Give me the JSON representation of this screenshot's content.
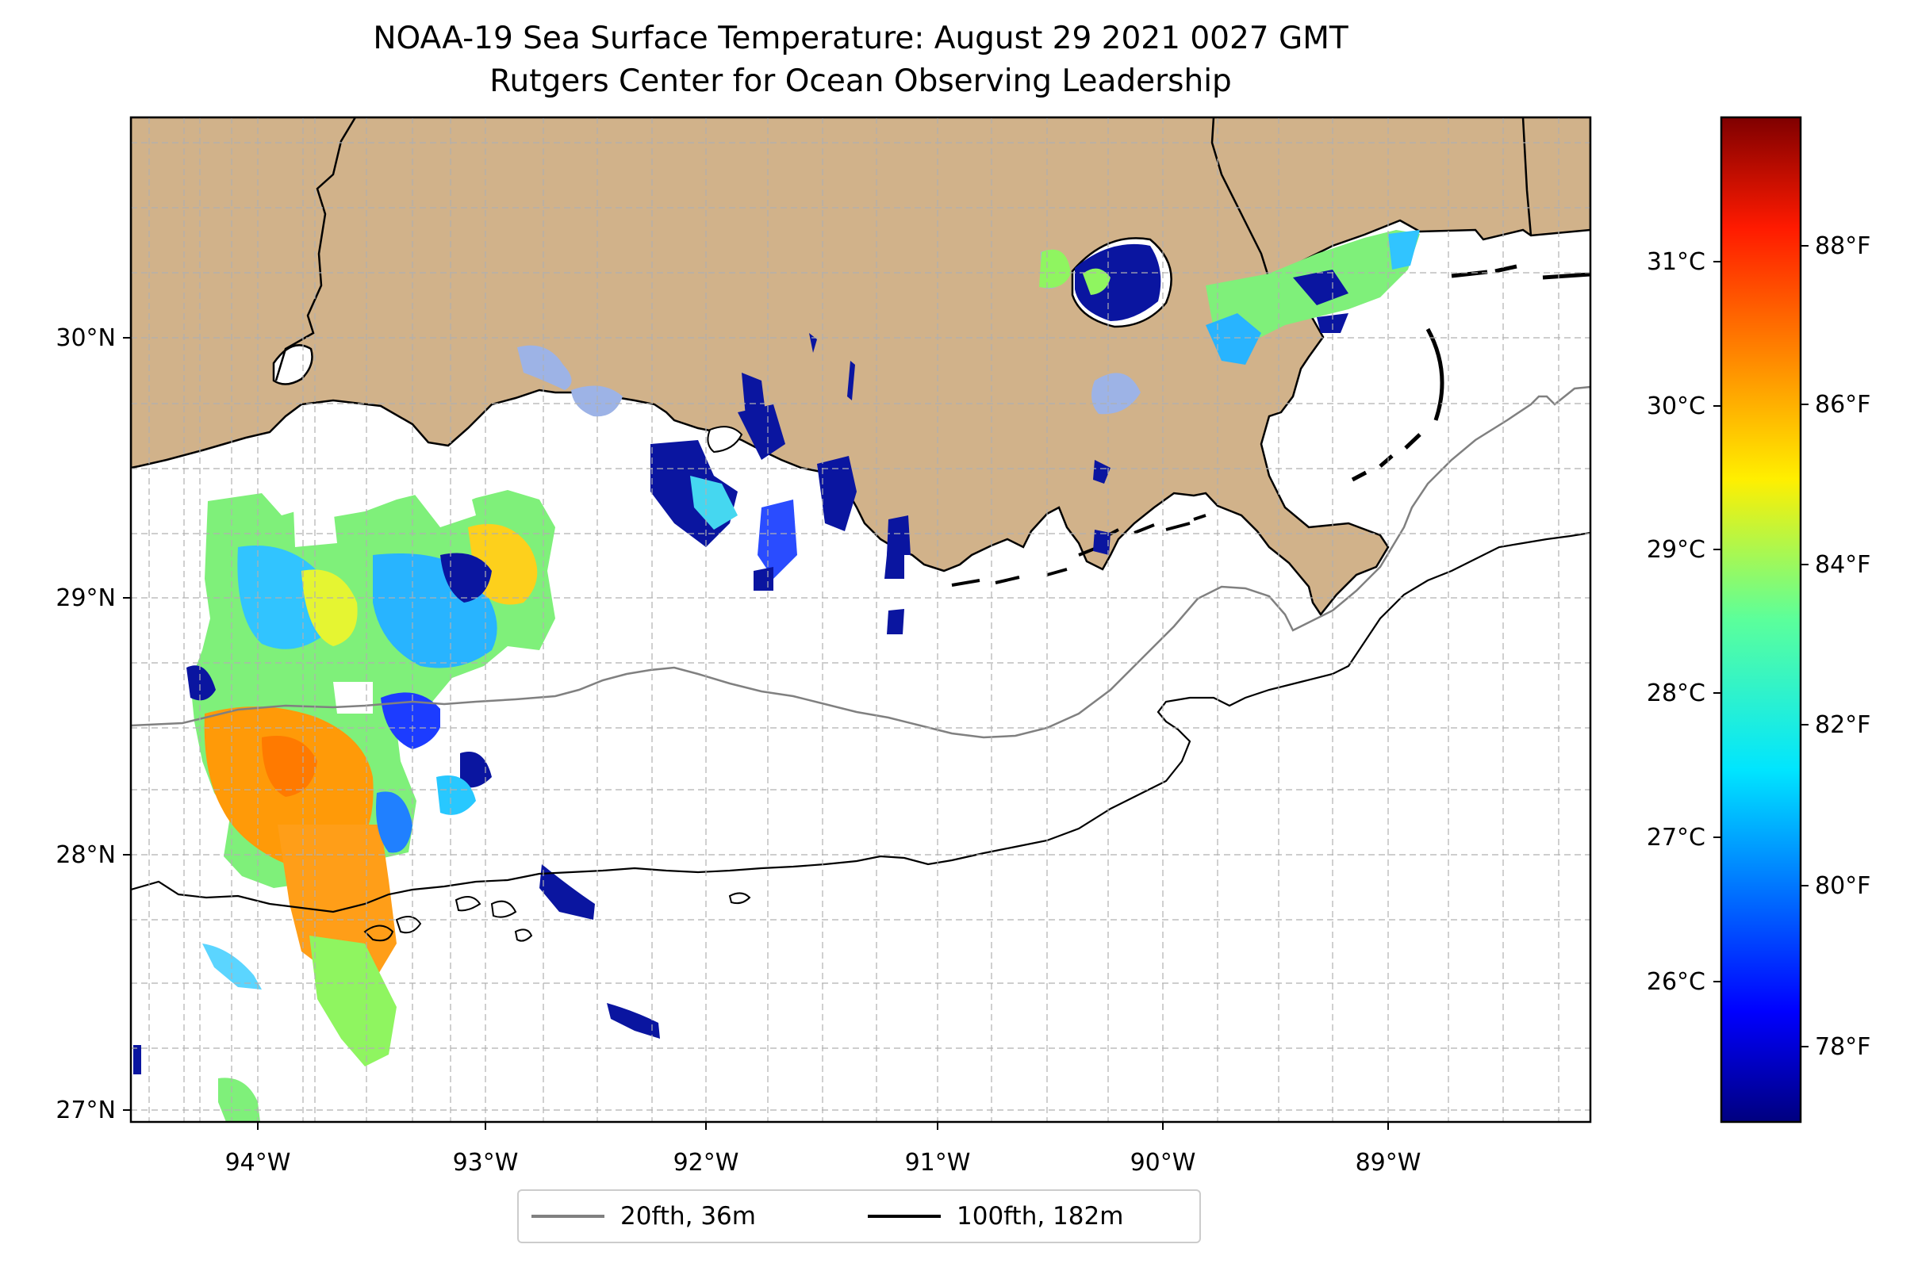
{
  "title": {
    "line1": "NOAA-19 Sea Surface Temperature: August 29 2021 0027 GMT",
    "line2": "Rutgers Center for Ocean Observing Leadership"
  },
  "map": {
    "lon_range": [
      -94.55,
      -88.25
    ],
    "lat_range": [
      26.93,
      30.84
    ],
    "lon_ticks": [
      "94°W",
      "93°W",
      "92°W",
      "91°W",
      "90°W",
      "89°W"
    ],
    "lat_ticks": [
      "27°N",
      "28°N",
      "29°N",
      "30°N"
    ],
    "colors": {
      "land": "#d1b28a",
      "ocean": "#ffffff",
      "lakes": "#9db3e6",
      "grid": "#b0b0b0"
    }
  },
  "colorbar": {
    "colormap": "jet",
    "celsius_ticks": [
      "26°C",
      "27°C",
      "28°C",
      "29°C",
      "30°C",
      "31°C"
    ],
    "fahrenheit_ticks": [
      "78°F",
      "80°F",
      "82°F",
      "84°F",
      "86°F",
      "88°F"
    ],
    "range_fahrenheit": [
      77,
      89.8
    ]
  },
  "legend": {
    "items": [
      {
        "label": "20fth, 36m",
        "color": "#808080"
      },
      {
        "label": "100fth, 182m",
        "color": "#000000"
      }
    ]
  }
}
